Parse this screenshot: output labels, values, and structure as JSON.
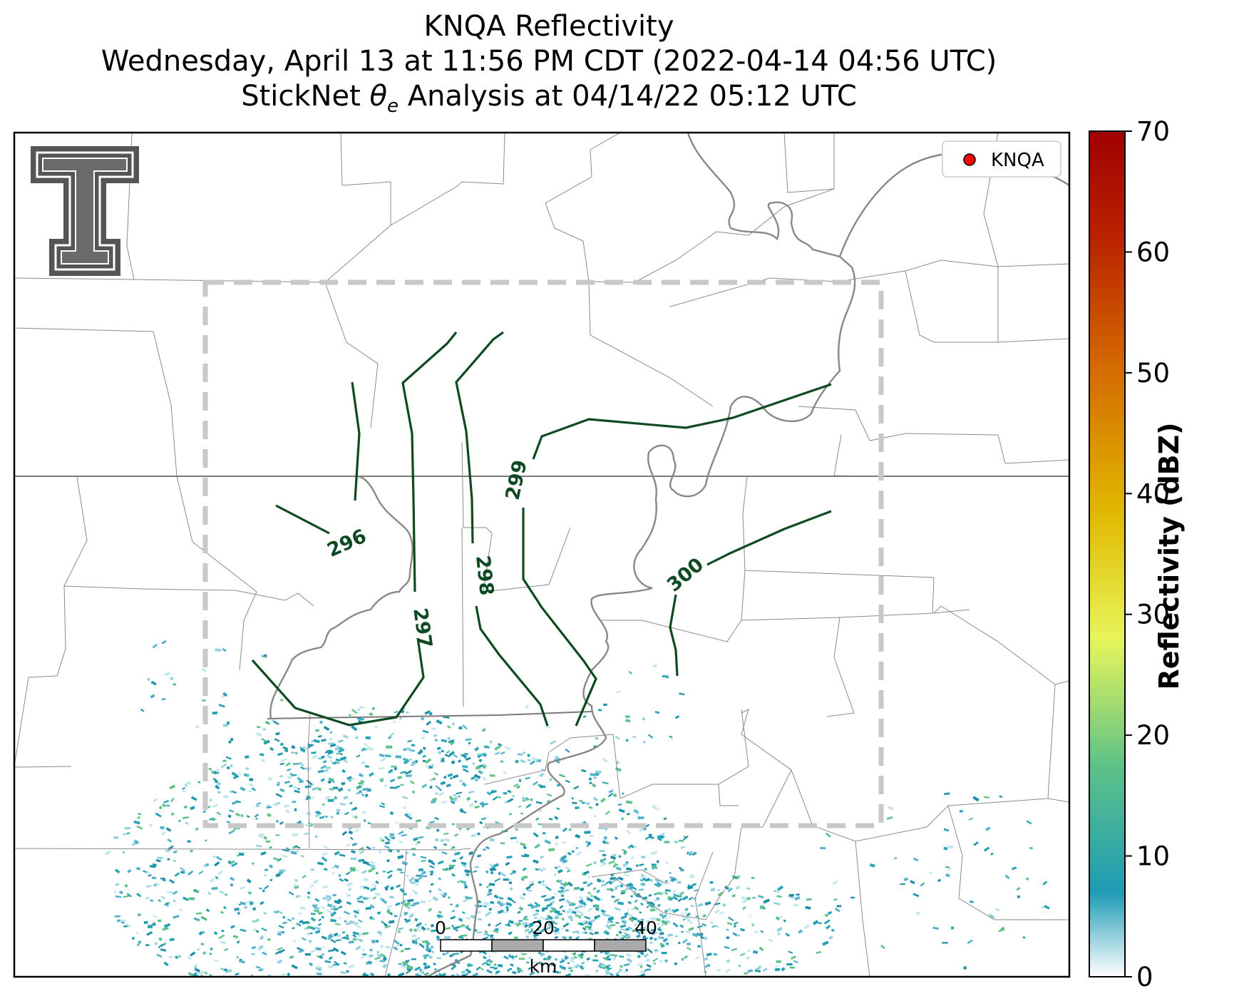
{
  "title": {
    "line1": "KNQA Reflectivity",
    "line2": "Wednesday, April 13 at 11:56 PM CDT (2022-04-14 04:56 UTC)",
    "line3": "StickNet θe Analysis at 04/14/22 05:12 UTC"
  },
  "legend": {
    "marker_color": "#ff0000",
    "label": "KNQA"
  },
  "colorbar": {
    "label": "Reflectivity (dBZ)",
    "ticks": [
      "0",
      "10",
      "20",
      "30",
      "40",
      "50",
      "60",
      "70"
    ],
    "range": [
      0,
      70
    ],
    "colors": [
      "#ffffff",
      "#1e9bb5",
      "#5ec287",
      "#e8f55a",
      "#e0b800",
      "#d46a00",
      "#b82000",
      "#a00000"
    ]
  },
  "contours": {
    "color": "#0d4a22",
    "labels": [
      "296",
      "297",
      "298",
      "299",
      "300"
    ]
  },
  "scale_bar": {
    "ticks": [
      "0",
      "20",
      "40"
    ],
    "unit": "km"
  },
  "logo": {
    "name": "Texas Tech Double T",
    "color": "#555555"
  }
}
